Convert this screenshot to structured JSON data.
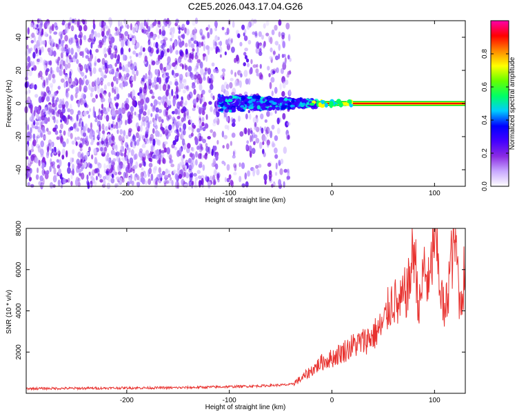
{
  "title": "C2E5.2026.043.17.04.G26",
  "chart_data": [
    {
      "type": "heatmap",
      "title": "C2E5.2026.043.17.04.G26",
      "xlabel": "Height of straight line (km)",
      "ylabel": "Frequency (Hz)",
      "xlim": [
        -298,
        130
      ],
      "ylim": [
        -50,
        50
      ],
      "xticks": [
        -200,
        -100,
        0,
        100
      ],
      "yticks": [
        -40,
        -20,
        0,
        20,
        40
      ],
      "colorbar": {
        "label": "Normalized spectral amplitude",
        "range": [
          0.0,
          1.0
        ],
        "ticks": [
          "0.0",
          "0.2",
          "0.4",
          "0.6",
          "0.8"
        ],
        "colormap": [
          "#ffffff",
          "#c8a8ff",
          "#8a2be2",
          "#4400ff",
          "#0000ff",
          "#00ccff",
          "#00ff66",
          "#66ff00",
          "#ffff00",
          "#ff8800",
          "#ff0000",
          "#ff00aa"
        ]
      },
      "features": {
        "noise_region_x": [
          -298,
          -40
        ],
        "noise_region_amplitude": 0.15,
        "signal_band_frequency": 0,
        "signal_band_start_x": -110,
        "signal_band_peak_start_x": -15,
        "signal_band_peak_amplitude": 0.95
      }
    },
    {
      "type": "line",
      "xlabel": "Height of straight line (km)",
      "ylabel": "SNR (10 * v/v)",
      "xlim": [
        -298,
        130
      ],
      "ylim": [
        0,
        8000
      ],
      "xticks": [
        -200,
        -100,
        0,
        100
      ],
      "yticks": [
        2000,
        4000,
        6000,
        8000
      ],
      "series": [
        {
          "name": "SNR",
          "color": "#e8322f",
          "x": [
            -298,
            -250,
            -200,
            -150,
            -100,
            -70,
            -40,
            -30,
            -20,
            -10,
            0,
            10,
            20,
            30,
            40,
            50,
            55,
            60,
            65,
            70,
            75,
            80,
            85,
            90,
            95,
            100,
            105,
            110,
            115,
            120,
            125,
            130
          ],
          "values": [
            230,
            240,
            260,
            270,
            320,
            360,
            420,
            700,
            1100,
            1500,
            1700,
            2000,
            2300,
            2500,
            2800,
            3300,
            4100,
            4600,
            4100,
            4700,
            5200,
            7200,
            4000,
            6200,
            5000,
            8000,
            5500,
            3600,
            6000,
            7800,
            4200,
            6300
          ]
        }
      ]
    }
  ]
}
